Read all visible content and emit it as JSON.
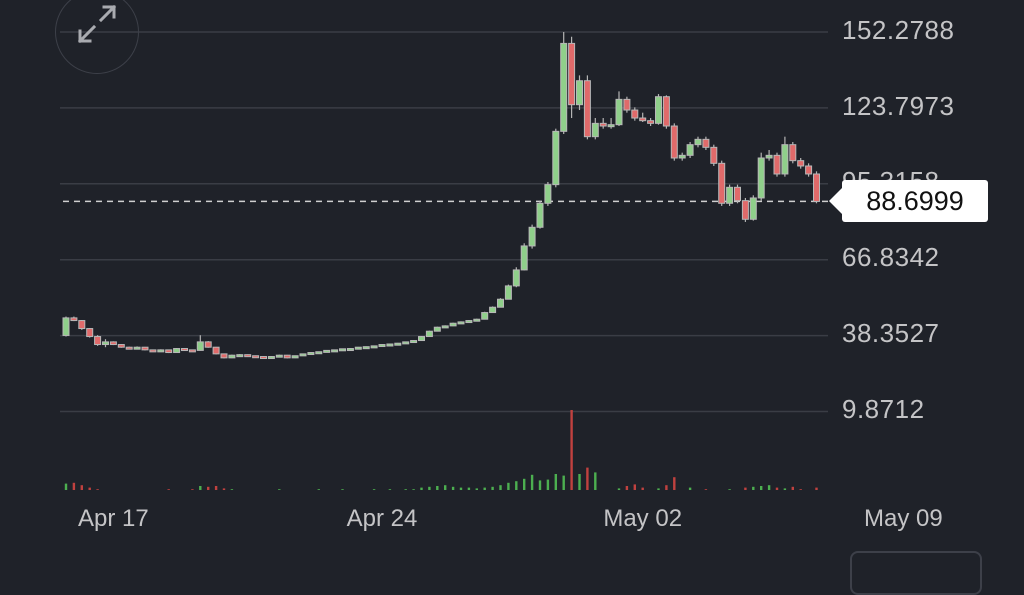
{
  "chart_data": {
    "type": "candlestick",
    "y_ticks": [
      "152.2788",
      "123.7973",
      "95.3158",
      "66.8342",
      "38.3527",
      "9.8712"
    ],
    "y_tick_values": [
      152.2788,
      123.7973,
      95.3158,
      66.8342,
      38.3527,
      9.8712
    ],
    "x_ticks": [
      "Apr 17",
      "Apr 24",
      "May 02",
      "May 09"
    ],
    "x_tick_candle_index": [
      6,
      40,
      73,
      106
    ],
    "current_price": "88.6999",
    "grid": true,
    "colors": {
      "up": "#8fcf8a",
      "down": "#e06a6a",
      "volume_up": "#4caf50",
      "volume_down": "#c0413f",
      "grid": "#3a3d45",
      "background": "#1f2229"
    },
    "candle_fields": [
      "open",
      "high",
      "low",
      "close",
      "volume"
    ],
    "candles": [
      [
        38.4,
        45.5,
        38.0,
        45.0,
        8
      ],
      [
        45,
        45.5,
        43.8,
        44,
        9
      ],
      [
        44,
        44.2,
        40.5,
        41,
        6
      ],
      [
        41,
        41.2,
        37.6,
        38,
        3
      ],
      [
        38,
        38.5,
        34.5,
        35,
        1
      ],
      [
        35,
        37,
        34,
        36,
        0
      ],
      [
        36,
        36.2,
        34.8,
        35,
        0
      ],
      [
        35,
        35.2,
        33.8,
        34,
        0
      ],
      [
        34,
        34.2,
        33.2,
        33.5,
        0
      ],
      [
        33.5,
        34.3,
        33.3,
        34,
        0
      ],
      [
        34,
        34.1,
        32.8,
        33,
        0
      ],
      [
        33,
        33.1,
        32.3,
        32.5,
        0
      ],
      [
        32.5,
        33.2,
        32.4,
        33,
        0
      ],
      [
        33,
        33.1,
        31.8,
        32,
        1
      ],
      [
        32,
        33.7,
        31.9,
        33.5,
        0
      ],
      [
        33.5,
        33.6,
        32.9,
        33,
        0
      ],
      [
        33,
        33.1,
        32.6,
        32.8,
        1
      ],
      [
        32.8,
        38.5,
        32.7,
        36,
        5
      ],
      [
        36,
        36.3,
        33.8,
        34,
        4
      ],
      [
        34,
        34.1,
        31.3,
        31.5,
        5
      ],
      [
        31.5,
        31.6,
        29.8,
        30,
        2
      ],
      [
        30,
        31.2,
        29.9,
        31,
        1
      ],
      [
        31,
        31.4,
        30.9,
        31.2,
        0
      ],
      [
        31.2,
        31.3,
        30.6,
        30.8,
        0
      ],
      [
        30.8,
        30.9,
        30.3,
        30.5,
        0
      ],
      [
        30.5,
        30.6,
        30,
        30.2,
        0
      ],
      [
        30.2,
        30.7,
        30.1,
        30.5,
        0
      ],
      [
        30.5,
        31.2,
        30.4,
        31,
        1
      ],
      [
        31,
        31.1,
        29.8,
        30,
        0
      ],
      [
        30,
        30.9,
        29.9,
        30.8,
        0
      ],
      [
        30.8,
        31.6,
        30.7,
        31.5,
        0
      ],
      [
        31.5,
        32.1,
        31.4,
        32,
        0
      ],
      [
        32,
        32.4,
        31.9,
        32.3,
        1
      ],
      [
        32.3,
        32.9,
        32.2,
        32.8,
        0
      ],
      [
        32.8,
        33.1,
        32.7,
        33,
        0
      ],
      [
        33,
        33.5,
        32.9,
        33.4,
        1
      ],
      [
        33.4,
        33.6,
        33.3,
        33.5,
        0
      ],
      [
        33.5,
        34.1,
        33.4,
        34,
        0
      ],
      [
        34,
        34.3,
        33.9,
        34.2,
        0
      ],
      [
        34.2,
        34.6,
        34.1,
        34.5,
        1
      ],
      [
        34.5,
        35.1,
        34.4,
        35,
        0
      ],
      [
        35,
        35.3,
        34.9,
        35.2,
        1
      ],
      [
        35.2,
        35.6,
        35.1,
        35.5,
        0
      ],
      [
        35.5,
        36.1,
        35.4,
        36,
        1
      ],
      [
        36,
        36.6,
        35.9,
        36.5,
        1
      ],
      [
        36.5,
        38.2,
        36.4,
        38,
        3
      ],
      [
        38,
        40.2,
        37.9,
        40,
        4
      ],
      [
        40,
        41.7,
        39.9,
        41.5,
        5
      ],
      [
        41.5,
        42.2,
        41.4,
        42,
        6
      ],
      [
        42,
        43.2,
        41.9,
        43,
        4
      ],
      [
        43,
        43.7,
        42.9,
        43.5,
        3
      ],
      [
        43.5,
        44.2,
        43.4,
        44,
        3
      ],
      [
        44,
        44.7,
        43.9,
        44.5,
        2
      ],
      [
        44.5,
        47.3,
        44.4,
        47,
        3
      ],
      [
        47,
        49.3,
        46.9,
        49,
        4
      ],
      [
        49,
        52.4,
        48.9,
        52,
        6
      ],
      [
        52,
        57.5,
        51.9,
        57,
        9
      ],
      [
        57,
        64,
        56.5,
        63,
        11
      ],
      [
        63,
        73,
        62.8,
        72,
        14
      ],
      [
        72,
        80,
        71,
        79,
        19
      ],
      [
        79,
        89,
        78.5,
        88,
        12
      ],
      [
        88,
        96,
        87,
        95,
        13
      ],
      [
        95,
        116,
        94,
        115,
        20
      ],
      [
        115,
        152.28,
        114,
        148,
        18
      ],
      [
        148,
        150.5,
        120,
        125,
        100
      ],
      [
        125,
        136,
        123,
        134,
        20
      ],
      [
        134,
        136,
        112,
        113,
        28
      ],
      [
        113,
        120,
        112,
        118,
        22
      ],
      [
        118,
        120,
        116,
        117,
        0
      ],
      [
        117,
        120,
        116,
        117.5,
        0
      ],
      [
        117.5,
        130,
        117,
        127,
        2
      ],
      [
        127,
        128,
        122,
        123,
        5
      ],
      [
        123,
        124,
        119,
        120,
        7
      ],
      [
        120,
        122,
        118.5,
        119,
        3
      ],
      [
        119,
        120,
        117,
        118,
        0
      ],
      [
        118,
        129,
        117.5,
        128,
        2
      ],
      [
        128,
        128.5,
        116,
        117,
        6
      ],
      [
        117,
        118,
        104,
        105,
        16
      ],
      [
        105,
        107,
        104,
        106,
        0
      ],
      [
        106,
        111,
        105,
        110,
        3
      ],
      [
        110,
        113,
        109,
        112,
        0
      ],
      [
        112,
        113,
        108,
        109,
        1
      ],
      [
        109,
        110,
        102,
        103,
        0
      ],
      [
        103,
        104,
        87,
        88,
        0
      ],
      [
        88,
        95,
        87,
        94,
        1
      ],
      [
        94,
        95,
        88,
        89,
        0
      ],
      [
        89,
        90,
        81,
        82,
        3
      ],
      [
        82,
        91,
        81.5,
        90,
        4
      ],
      [
        90,
        107,
        89,
        105,
        5
      ],
      [
        105,
        108,
        104,
        106,
        6
      ],
      [
        106,
        107,
        98,
        99,
        3
      ],
      [
        99,
        113,
        98,
        110,
        2
      ],
      [
        110,
        111,
        103,
        104,
        4
      ],
      [
        104,
        105,
        101,
        102,
        1
      ],
      [
        102,
        103,
        98,
        99,
        0
      ],
      [
        99,
        100,
        88,
        88.6999,
        3
      ]
    ]
  },
  "controls": {
    "expand_icon": "expand-arrows-icon"
  }
}
